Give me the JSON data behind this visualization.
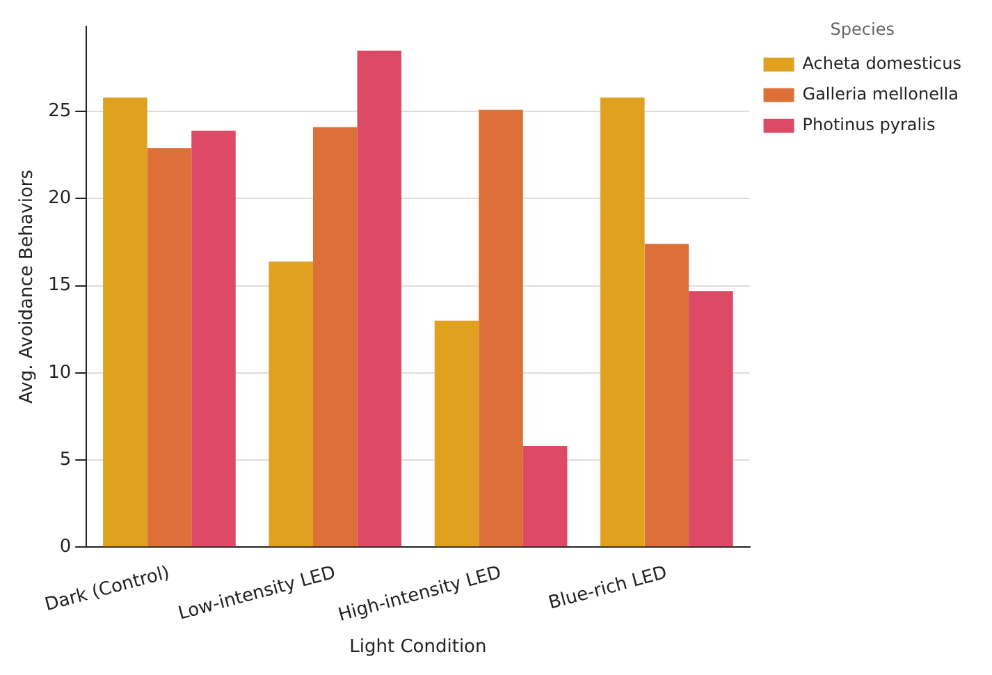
{
  "chart_data": {
    "type": "bar",
    "xlabel": "Light Condition",
    "ylabel": "Avg. Avoidance Behaviors",
    "legend_title": "Species",
    "categories": [
      "Dark (Control)",
      "Low-intensity LED",
      "High-intensity LED",
      "Blue-rich LED"
    ],
    "series": [
      {
        "name": "Acheta domesticus",
        "color": "#e0a020",
        "values": [
          25.8,
          16.4,
          13.0,
          25.8
        ]
      },
      {
        "name": "Galleria mellonella",
        "color": "#dc7038",
        "values": [
          22.9,
          24.1,
          25.1,
          17.4
        ]
      },
      {
        "name": "Photinus pyralis",
        "color": "#dc4a66",
        "values": [
          23.9,
          28.5,
          5.8,
          14.7
        ]
      }
    ],
    "ylim": [
      0,
      29.9
    ],
    "yticks": [
      0,
      5,
      10,
      15,
      20,
      25
    ],
    "grid": "y",
    "legend": "right"
  }
}
